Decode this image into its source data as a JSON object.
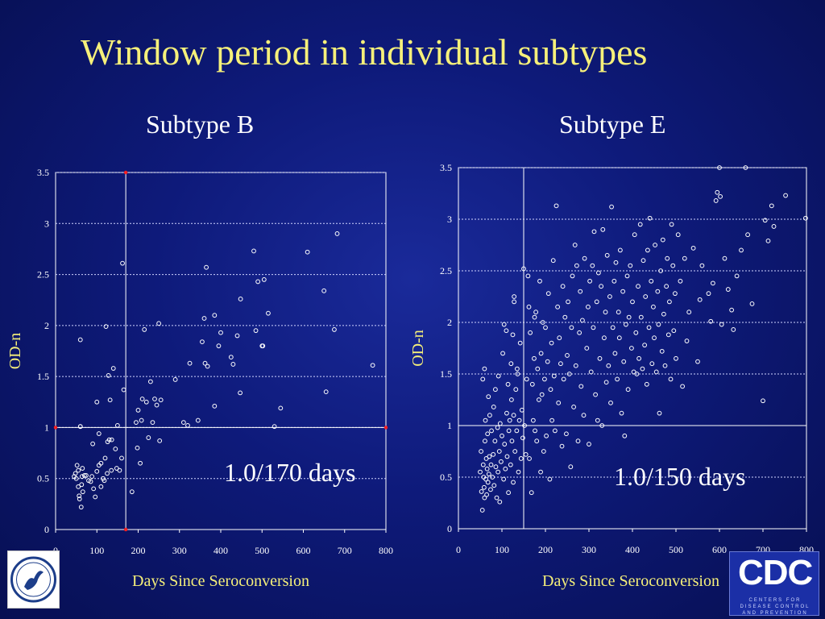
{
  "slide": {
    "title": "Window period in individual subtypes",
    "subtitle_left": "Subtype B",
    "subtitle_right": "Subtype E",
    "logo_left_icon": "hhs-eagle-logo-icon",
    "logo_right": {
      "text": "CDC",
      "subtext": "CENTERS FOR DISEASE CONTROL AND PREVENTION"
    }
  },
  "chart_data": [
    {
      "type": "scatter",
      "title": "Subtype B",
      "xlabel": "Days Since Seroconversion",
      "ylabel": "OD-n",
      "xlim": [
        0,
        800
      ],
      "ylim": [
        0,
        3.5
      ],
      "xticks": [
        "0",
        "100",
        "200",
        "300",
        "400",
        "500",
        "600",
        "700",
        "800"
      ],
      "yticks": [
        "0",
        "0.5",
        "1",
        "1.5",
        "2",
        "2.5",
        "3",
        "3.5"
      ],
      "grid": "dashed horizontal",
      "annotation": "1.0/170 days",
      "threshold": {
        "x": 170,
        "y": 1.0
      },
      "marker_color": "#ffffff",
      "threshold_color": "#ff2020",
      "points": [
        [
          45,
          0.52
        ],
        [
          48,
          0.55
        ],
        [
          50,
          0.5
        ],
        [
          52,
          0.63
        ],
        [
          55,
          0.58
        ],
        [
          55,
          0.42
        ],
        [
          57,
          0.33
        ],
        [
          58,
          0.3
        ],
        [
          60,
          1.01
        ],
        [
          60,
          1.01
        ],
        [
          60,
          1.86
        ],
        [
          62,
          0.22
        ],
        [
          63,
          0.44
        ],
        [
          64,
          0.52
        ],
        [
          65,
          0.6
        ],
        [
          66,
          0.37
        ],
        [
          70,
          0.53
        ],
        [
          74,
          0.53
        ],
        [
          80,
          0.48
        ],
        [
          85,
          0.47
        ],
        [
          88,
          0.52
        ],
        [
          90,
          0.84
        ],
        [
          92,
          0.4
        ],
        [
          96,
          0.32
        ],
        [
          100,
          0.57
        ],
        [
          100,
          1.25
        ],
        [
          105,
          0.63
        ],
        [
          105,
          0.94
        ],
        [
          110,
          0.65
        ],
        [
          110,
          0.42
        ],
        [
          115,
          0.5
        ],
        [
          118,
          0.48
        ],
        [
          120,
          0.7
        ],
        [
          122,
          1.99
        ],
        [
          125,
          0.55
        ],
        [
          126,
          0.86
        ],
        [
          128,
          1.51
        ],
        [
          130,
          0.88
        ],
        [
          132,
          1.27
        ],
        [
          135,
          0.58
        ],
        [
          136,
          0.88
        ],
        [
          140,
          1.58
        ],
        [
          145,
          0.79
        ],
        [
          148,
          0.6
        ],
        [
          150,
          1.02
        ],
        [
          155,
          0.58
        ],
        [
          160,
          0.7
        ],
        [
          162,
          2.61
        ],
        [
          165,
          1.37
        ],
        [
          185,
          0.37
        ],
        [
          195,
          1.05
        ],
        [
          198,
          0.8
        ],
        [
          200,
          1.17
        ],
        [
          205,
          0.65
        ],
        [
          208,
          1.07
        ],
        [
          210,
          1.28
        ],
        [
          215,
          1.96
        ],
        [
          220,
          1.25
        ],
        [
          225,
          0.9
        ],
        [
          230,
          1.45
        ],
        [
          235,
          1.05
        ],
        [
          240,
          1.28
        ],
        [
          245,
          1.22
        ],
        [
          250,
          2.02
        ],
        [
          252,
          0.87
        ],
        [
          255,
          1.27
        ],
        [
          290,
          1.47
        ],
        [
          310,
          1.05
        ],
        [
          320,
          1.02
        ],
        [
          325,
          1.63
        ],
        [
          345,
          1.07
        ],
        [
          355,
          1.84
        ],
        [
          360,
          2.07
        ],
        [
          362,
          1.63
        ],
        [
          365,
          2.57
        ],
        [
          368,
          1.6
        ],
        [
          385,
          2.1
        ],
        [
          385,
          1.21
        ],
        [
          395,
          1.8
        ],
        [
          400,
          1.93
        ],
        [
          425,
          1.69
        ],
        [
          430,
          1.62
        ],
        [
          440,
          1.9
        ],
        [
          447,
          1.34
        ],
        [
          448,
          2.26
        ],
        [
          480,
          2.73
        ],
        [
          485,
          1.95
        ],
        [
          490,
          2.43
        ],
        [
          500,
          1.8
        ],
        [
          502,
          1.8
        ],
        [
          505,
          2.45
        ],
        [
          515,
          2.12
        ],
        [
          530,
          1.01
        ],
        [
          545,
          1.19
        ],
        [
          610,
          2.72
        ],
        [
          650,
          2.34
        ],
        [
          655,
          1.35
        ],
        [
          675,
          1.96
        ],
        [
          682,
          2.9
        ],
        [
          768,
          1.61
        ]
      ]
    },
    {
      "type": "scatter",
      "title": "Subtype E",
      "xlabel": "Days Since Seroconversion",
      "ylabel": "OD-n",
      "xlim": [
        0,
        800
      ],
      "ylim": [
        0,
        3.5
      ],
      "xticks": [
        "0",
        "100",
        "200",
        "300",
        "400",
        "500",
        "600",
        "700",
        "800"
      ],
      "yticks": [
        "0",
        "0.5",
        "1",
        "1.5",
        "2",
        "2.5",
        "3",
        "3.5"
      ],
      "grid": "dashed horizontal",
      "annotation": "1.0/150 days",
      "threshold": {
        "x": 150,
        "y": 1.0
      },
      "marker_color": "#ffffff",
      "points": [
        [
          50,
          0.55
        ],
        [
          52,
          0.75
        ],
        [
          53,
          0.36
        ],
        [
          55,
          0.18
        ],
        [
          56,
          1.45
        ],
        [
          57,
          0.62
        ],
        [
          58,
          0.5
        ],
        [
          59,
          0.4
        ],
        [
          60,
          0.3
        ],
        [
          60,
          1.55
        ],
        [
          61,
          0.85
        ],
        [
          62,
          1.05
        ],
        [
          63,
          0.48
        ],
        [
          64,
          0.68
        ],
        [
          65,
          0.33
        ],
        [
          66,
          0.58
        ],
        [
          67,
          0.92
        ],
        [
          68,
          0.45
        ],
        [
          69,
          1.28
        ],
        [
          70,
          0.53
        ],
        [
          71,
          0.7
        ],
        [
          72,
          1.1
        ],
        [
          74,
          0.38
        ],
        [
          75,
          0.62
        ],
        [
          76,
          0.95
        ],
        [
          78,
          0.5
        ],
        [
          80,
          0.72
        ],
        [
          81,
          1.18
        ],
        [
          82,
          0.42
        ],
        [
          84,
          0.85
        ],
        [
          85,
          1.35
        ],
        [
          86,
          0.6
        ],
        [
          88,
          0.3
        ],
        [
          90,
          0.98
        ],
        [
          91,
          0.55
        ],
        [
          92,
          1.48
        ],
        [
          94,
          0.75
        ],
        [
          95,
          0.26
        ],
        [
          96,
          1.02
        ],
        [
          98,
          0.65
        ],
        [
          100,
          0.9
        ],
        [
          102,
          1.7
        ],
        [
          104,
          0.48
        ],
        [
          105,
          1.98
        ],
        [
          106,
          0.82
        ],
        [
          108,
          0.58
        ],
        [
          110,
          1.92
        ],
        [
          111,
          1.12
        ],
        [
          112,
          0.7
        ],
        [
          114,
          1.4
        ],
        [
          115,
          0.35
        ],
        [
          116,
          0.95
        ],
        [
          118,
          1.05
        ],
        [
          120,
          0.62
        ],
        [
          121,
          1.6
        ],
        [
          122,
          1.25
        ],
        [
          123,
          0.85
        ],
        [
          125,
          1.88
        ],
        [
          126,
          0.45
        ],
        [
          127,
          1.1
        ],
        [
          128,
          2.2
        ],
        [
          128,
          2.25
        ],
        [
          130,
          0.75
        ],
        [
          132,
          1.35
        ],
        [
          134,
          0.95
        ],
        [
          135,
          1.55
        ],
        [
          136,
          1.5
        ],
        [
          138,
          0.55
        ],
        [
          140,
          1.05
        ],
        [
          142,
          1.8
        ],
        [
          144,
          0.68
        ],
        [
          146,
          1.15
        ],
        [
          148,
          0.88
        ],
        [
          150,
          2.52
        ],
        [
          152,
          1.0
        ],
        [
          155,
          0.72
        ],
        [
          157,
          1.45
        ],
        [
          160,
          2.45
        ],
        [
          162,
          2.15
        ],
        [
          163,
          0.68
        ],
        [
          165,
          1.9
        ],
        [
          168,
          0.35
        ],
        [
          170,
          1.4
        ],
        [
          172,
          1.05
        ],
        [
          174,
          1.65
        ],
        [
          175,
          2.05
        ],
        [
          176,
          0.95
        ],
        [
          178,
          2.1
        ],
        [
          180,
          0.85
        ],
        [
          182,
          1.55
        ],
        [
          185,
          1.25
        ],
        [
          187,
          2.4
        ],
        [
          189,
          0.55
        ],
        [
          190,
          1.7
        ],
        [
          192,
          1.3
        ],
        [
          194,
          2.0
        ],
        [
          196,
          0.75
        ],
        [
          198,
          1.45
        ],
        [
          200,
          1.95
        ],
        [
          202,
          0.9
        ],
        [
          205,
          1.62
        ],
        [
          207,
          2.28
        ],
        [
          210,
          0.48
        ],
        [
          212,
          1.35
        ],
        [
          214,
          1.8
        ],
        [
          215,
          1.05
        ],
        [
          218,
          2.6
        ],
        [
          220,
          1.48
        ],
        [
          222,
          0.95
        ],
        [
          225,
          3.13
        ],
        [
          228,
          2.15
        ],
        [
          230,
          1.22
        ],
        [
          232,
          1.85
        ],
        [
          235,
          1.6
        ],
        [
          238,
          0.8
        ],
        [
          240,
          2.35
        ],
        [
          242,
          1.45
        ],
        [
          245,
          2.05
        ],
        [
          248,
          0.92
        ],
        [
          250,
          1.68
        ],
        [
          252,
          2.2
        ],
        [
          255,
          1.5
        ],
        [
          258,
          0.6
        ],
        [
          260,
          1.95
        ],
        [
          262,
          2.45
        ],
        [
          265,
          1.18
        ],
        [
          268,
          2.75
        ],
        [
          270,
          1.58
        ],
        [
          272,
          2.55
        ],
        [
          275,
          0.85
        ],
        [
          278,
          1.9
        ],
        [
          280,
          2.3
        ],
        [
          282,
          1.38
        ],
        [
          285,
          2.02
        ],
        [
          288,
          1.1
        ],
        [
          290,
          2.62
        ],
        [
          295,
          1.75
        ],
        [
          298,
          2.15
        ],
        [
          300,
          0.82
        ],
        [
          302,
          2.4
        ],
        [
          305,
          1.52
        ],
        [
          308,
          2.55
        ],
        [
          310,
          1.95
        ],
        [
          312,
          2.88
        ],
        [
          315,
          1.3
        ],
        [
          318,
          2.2
        ],
        [
          320,
          1.05
        ],
        [
          322,
          2.48
        ],
        [
          325,
          1.65
        ],
        [
          328,
          2.35
        ],
        [
          330,
          1.0
        ],
        [
          332,
          2.9
        ],
        [
          335,
          1.85
        ],
        [
          338,
          2.1
        ],
        [
          340,
          1.42
        ],
        [
          342,
          2.65
        ],
        [
          345,
          1.58
        ],
        [
          348,
          2.25
        ],
        [
          350,
          1.22
        ],
        [
          352,
          3.12
        ],
        [
          355,
          1.95
        ],
        [
          358,
          2.4
        ],
        [
          360,
          1.7
        ],
        [
          362,
          2.58
        ],
        [
          365,
          1.45
        ],
        [
          368,
          2.1
        ],
        [
          370,
          1.85
        ],
        [
          372,
          2.7
        ],
        [
          375,
          1.12
        ],
        [
          378,
          2.3
        ],
        [
          380,
          1.62
        ],
        [
          382,
          0.9
        ],
        [
          385,
          1.98
        ],
        [
          388,
          2.45
        ],
        [
          390,
          1.35
        ],
        [
          392,
          2.05
        ],
        [
          395,
          2.55
        ],
        [
          398,
          1.75
        ],
        [
          400,
          2.2
        ],
        [
          403,
          1.52
        ],
        [
          405,
          2.85
        ],
        [
          408,
          1.9
        ],
        [
          410,
          1.5
        ],
        [
          413,
          2.35
        ],
        [
          415,
          1.65
        ],
        [
          418,
          2.95
        ],
        [
          420,
          2.05
        ],
        [
          423,
          1.55
        ],
        [
          425,
          2.6
        ],
        [
          428,
          1.78
        ],
        [
          430,
          2.25
        ],
        [
          433,
          1.4
        ],
        [
          435,
          2.7
        ],
        [
          438,
          1.95
        ],
        [
          440,
          3.01
        ],
        [
          443,
          2.4
        ],
        [
          445,
          1.6
        ],
        [
          448,
          2.15
        ],
        [
          450,
          1.85
        ],
        [
          452,
          2.75
        ],
        [
          455,
          1.52
        ],
        [
          458,
          2.3
        ],
        [
          460,
          1.98
        ],
        [
          462,
          1.12
        ],
        [
          465,
          2.5
        ],
        [
          468,
          1.72
        ],
        [
          470,
          2.8
        ],
        [
          472,
          2.08
        ],
        [
          475,
          1.58
        ],
        [
          478,
          2.35
        ],
        [
          480,
          2.62
        ],
        [
          483,
          1.88
        ],
        [
          485,
          2.2
        ],
        [
          488,
          1.45
        ],
        [
          490,
          2.95
        ],
        [
          493,
          2.55
        ],
        [
          495,
          1.92
        ],
        [
          498,
          2.28
        ],
        [
          500,
          1.65
        ],
        [
          505,
          2.85
        ],
        [
          510,
          2.4
        ],
        [
          515,
          1.38
        ],
        [
          520,
          2.62
        ],
        [
          525,
          1.82
        ],
        [
          530,
          2.1
        ],
        [
          540,
          2.72
        ],
        [
          550,
          1.62
        ],
        [
          555,
          2.22
        ],
        [
          560,
          2.55
        ],
        [
          575,
          2.28
        ],
        [
          580,
          2.01
        ],
        [
          585,
          2.38
        ],
        [
          592,
          3.18
        ],
        [
          595,
          3.26
        ],
        [
          600,
          3.5
        ],
        [
          602,
          3.22
        ],
        [
          605,
          1.98
        ],
        [
          612,
          2.62
        ],
        [
          620,
          2.32
        ],
        [
          628,
          2.12
        ],
        [
          632,
          1.93
        ],
        [
          640,
          2.45
        ],
        [
          650,
          2.7
        ],
        [
          660,
          3.5
        ],
        [
          665,
          2.85
        ],
        [
          675,
          2.18
        ],
        [
          700,
          1.24
        ],
        [
          705,
          2.99
        ],
        [
          712,
          2.79
        ],
        [
          720,
          3.13
        ],
        [
          725,
          2.93
        ],
        [
          752,
          3.23
        ],
        [
          798,
          3.01
        ]
      ]
    }
  ]
}
